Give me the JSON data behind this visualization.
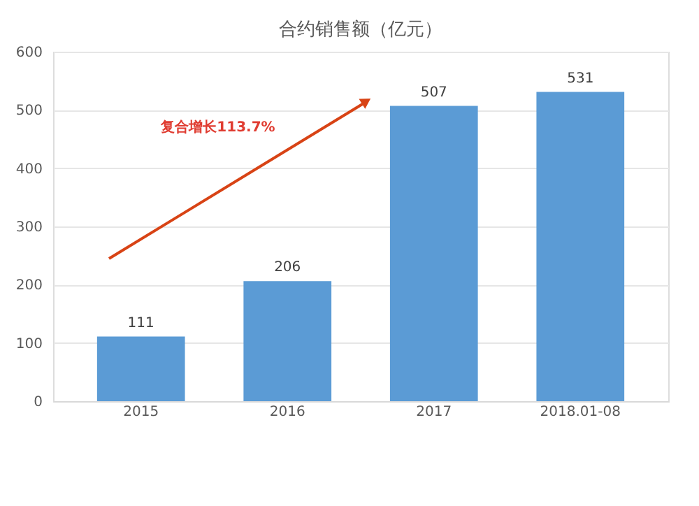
{
  "chart_data": {
    "type": "bar",
    "title": "合约销售额（亿元）",
    "categories": [
      "2015",
      "2016",
      "2017",
      "2018.01-08"
    ],
    "values": [
      111,
      206,
      507,
      531
    ],
    "color": "#5b9bd5",
    "ylim": [
      0,
      600
    ],
    "yticks": [
      0,
      100,
      200,
      300,
      400,
      500,
      600
    ],
    "grid": "y",
    "data_labels": true,
    "annotations": [
      "复合增长113.7%"
    ]
  }
}
